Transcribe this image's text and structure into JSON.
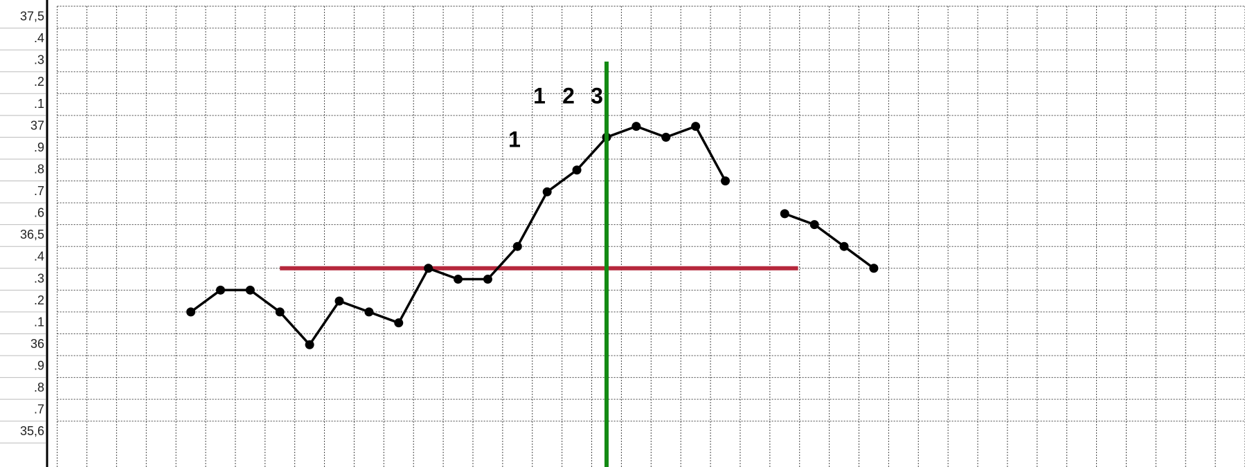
{
  "chart_data": {
    "type": "line",
    "categories": [
      null,
      null,
      null,
      null,
      null,
      null,
      null,
      null,
      null,
      null,
      null,
      null,
      null,
      null,
      null,
      null,
      null,
      null,
      null,
      null,
      null,
      null,
      null,
      null,
      null,
      null,
      null,
      null,
      null,
      null,
      null,
      null,
      null,
      null,
      null,
      null,
      null,
      null,
      null,
      null
    ],
    "values": [
      null,
      null,
      null,
      null,
      36.15,
      36.25,
      36.25,
      36.15,
      36.0,
      36.2,
      36.15,
      36.1,
      36.35,
      36.3,
      36.3,
      36.45,
      36.7,
      36.8,
      36.95,
      37.0,
      36.95,
      37.0,
      36.75,
      null,
      36.6,
      36.55,
      36.45,
      36.35,
      null,
      null,
      null,
      null,
      null,
      null,
      null,
      null,
      null,
      null,
      null,
      null
    ],
    "color": "#000000",
    "ylim": [
      35.44,
      37.55
    ],
    "yticks": [
      {
        "value": 37.5,
        "label": "37,5"
      },
      {
        "value": 37.4,
        "label": ".4"
      },
      {
        "value": 37.3,
        "label": ".3"
      },
      {
        "value": 37.2,
        "label": ".2"
      },
      {
        "value": 37.1,
        "label": ".1"
      },
      37,
      {
        "value": 36.9,
        "label": ".9"
      },
      {
        "value": 36.8,
        "label": ".8"
      },
      {
        "value": 36.7,
        "label": ".7"
      },
      {
        "value": 36.6,
        "label": ".6"
      },
      {
        "value": 36.5,
        "label": "36,5"
      },
      {
        "value": 36.4,
        "label": ".4"
      },
      {
        "value": 36.3,
        "label": ".3"
      },
      {
        "value": 36.2,
        "label": ".2"
      },
      {
        "value": 36.1,
        "label": ".1"
      },
      36,
      {
        "value": 35.9,
        "label": ".9"
      },
      {
        "value": 35.8,
        "label": ".8"
      },
      {
        "value": 35.7,
        "label": ".7"
      },
      {
        "value": 35.6,
        "label": "35,6"
      }
    ],
    "grid": true,
    "reference_lines": [
      {
        "value": 36.35,
        "color": "#b5283c"
      }
    ],
    "vlines": [
      {
        "x": 18,
        "color": "#138a13"
      }
    ],
    "annotations": [
      "1",
      "1",
      "2",
      "3"
    ]
  }
}
